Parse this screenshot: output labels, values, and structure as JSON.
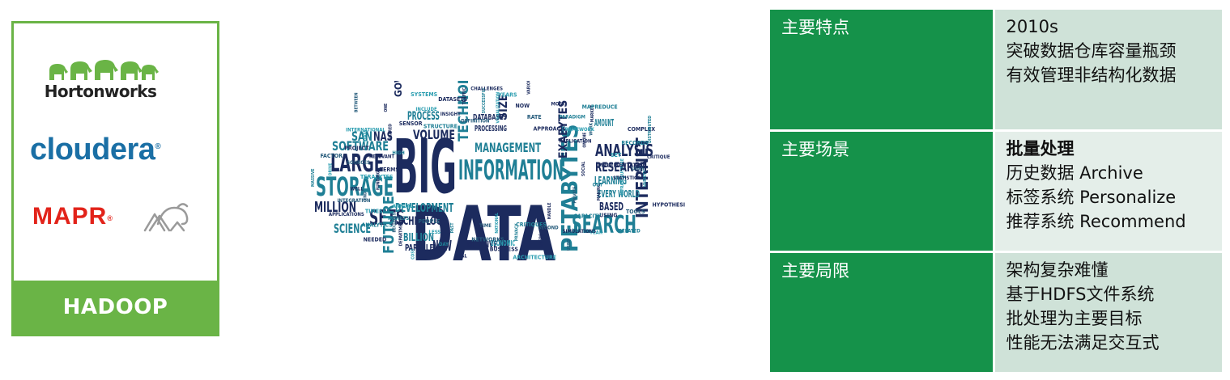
{
  "vendors": {
    "hortonworks": "Hortonworks",
    "cloudera": "cloudera",
    "mapr": "MAPR",
    "footer": "HADOOP",
    "colors": {
      "green": "#6ab446",
      "cloudera_blue": "#1a6fa5",
      "mapr_red": "#e2231a"
    }
  },
  "word_cloud": {
    "big": [
      "BIG",
      "DATA"
    ],
    "large": [
      "INFORMATION",
      "STORAGE",
      "LARGE",
      "SEARCH",
      "PETABYTES",
      "ANALYSIS",
      "MANAGEMENT",
      "TECHNOLOGIES",
      "SETS",
      "SOFTWARE",
      "VOLUME",
      "RESEARCH",
      "PROCESS",
      "GOVERNMENT",
      "INTERNET",
      "MILLION",
      "SIZE",
      "SCIENCE",
      "FUTURE",
      "DEVELOPMENT",
      "TECHNOLOGY",
      "EXABYTES",
      "LEARNING",
      "BILLION",
      "NEW",
      "NAS",
      "SAN",
      "BASED",
      "AMOUNT",
      "EVERY WORLD",
      "PARALLEL",
      "PROCESSING",
      "DATABASES",
      "INITIATIVE",
      "ECONOMIC"
    ],
    "small": [
      "SOCIAL",
      "RESULTS",
      "YEARS",
      "HANDLE",
      "SOURCES",
      "COMPLEX",
      "PAST",
      "INCLUDE",
      "HYPOTHESIS",
      "END",
      "MOST",
      "CRITIQUES",
      "STATE",
      "CRITIQUE",
      "PEOPLE",
      "TRAFFIC",
      "RELATED",
      "TERABYTES",
      "MARKET",
      "TIME",
      "SENSOR",
      "VARIETY",
      "ANNUAL",
      "NOW",
      "USED",
      "RELEVANT",
      "RECORDS",
      "COST",
      "INSIGHT",
      "TOOLS",
      "FUNDING",
      "PARADIGM",
      "ARCHITECTURE",
      "SHARED",
      "USES",
      "NEEDED",
      "SUCCESSFUL",
      "YEAR",
      "TERMS",
      "WORK",
      "REAL",
      "STRUCTURE",
      "INFRASTRUCTURE",
      "APPLICATIONS",
      "RATE",
      "USERS",
      "HIGH",
      "SET",
      "DEPARTMENT",
      "DEFINITION",
      "USING",
      "MASSIVE",
      "FRAMEWORK",
      "BUSINESS",
      "BETWEEN",
      "STATISTICS",
      "ANALYTICS",
      "VISUALIZATION",
      "SIMULATIONS",
      "FACTOR",
      "ONLINE",
      "DAY",
      "SYSTEMS",
      "MAKING",
      "INTEGRATION",
      "APPROACH",
      "PRIVACY",
      "INTERNATIONAL",
      "IMPLEMENTATION",
      "BECOMES",
      "CHALLENGES",
      "CAPACITY",
      "DRIVE",
      "REPLICATION",
      "NETWORKS",
      "ONE",
      "OUT",
      "TIMES",
      "VARIOUS",
      "SECOND",
      "PROJECT",
      "DISTRIBUTED",
      "LESS",
      "DATASETS",
      "PRIVATE",
      "WELL",
      "MAPREDUCE",
      "NATIONAL"
    ]
  },
  "table": {
    "rows": [
      {
        "key": "主要特点",
        "lines": [
          "2010s",
          "突破数据仓库容量瓶颈",
          "有效管理非结构化数据"
        ]
      },
      {
        "key": "主要场景",
        "lines": [
          "批量处理",
          "历史数据 Archive",
          "标签系统 Personalize",
          "推荐系统 Recommend"
        ]
      },
      {
        "key": "主要局限",
        "lines": [
          "架构复杂难懂",
          "基于HDFS文件系统",
          "批处理为主要目标",
          "性能无法满足交互式"
        ]
      }
    ],
    "colors": {
      "key_bg": "#15924a",
      "val_bg": "#cfe2d8"
    }
  }
}
